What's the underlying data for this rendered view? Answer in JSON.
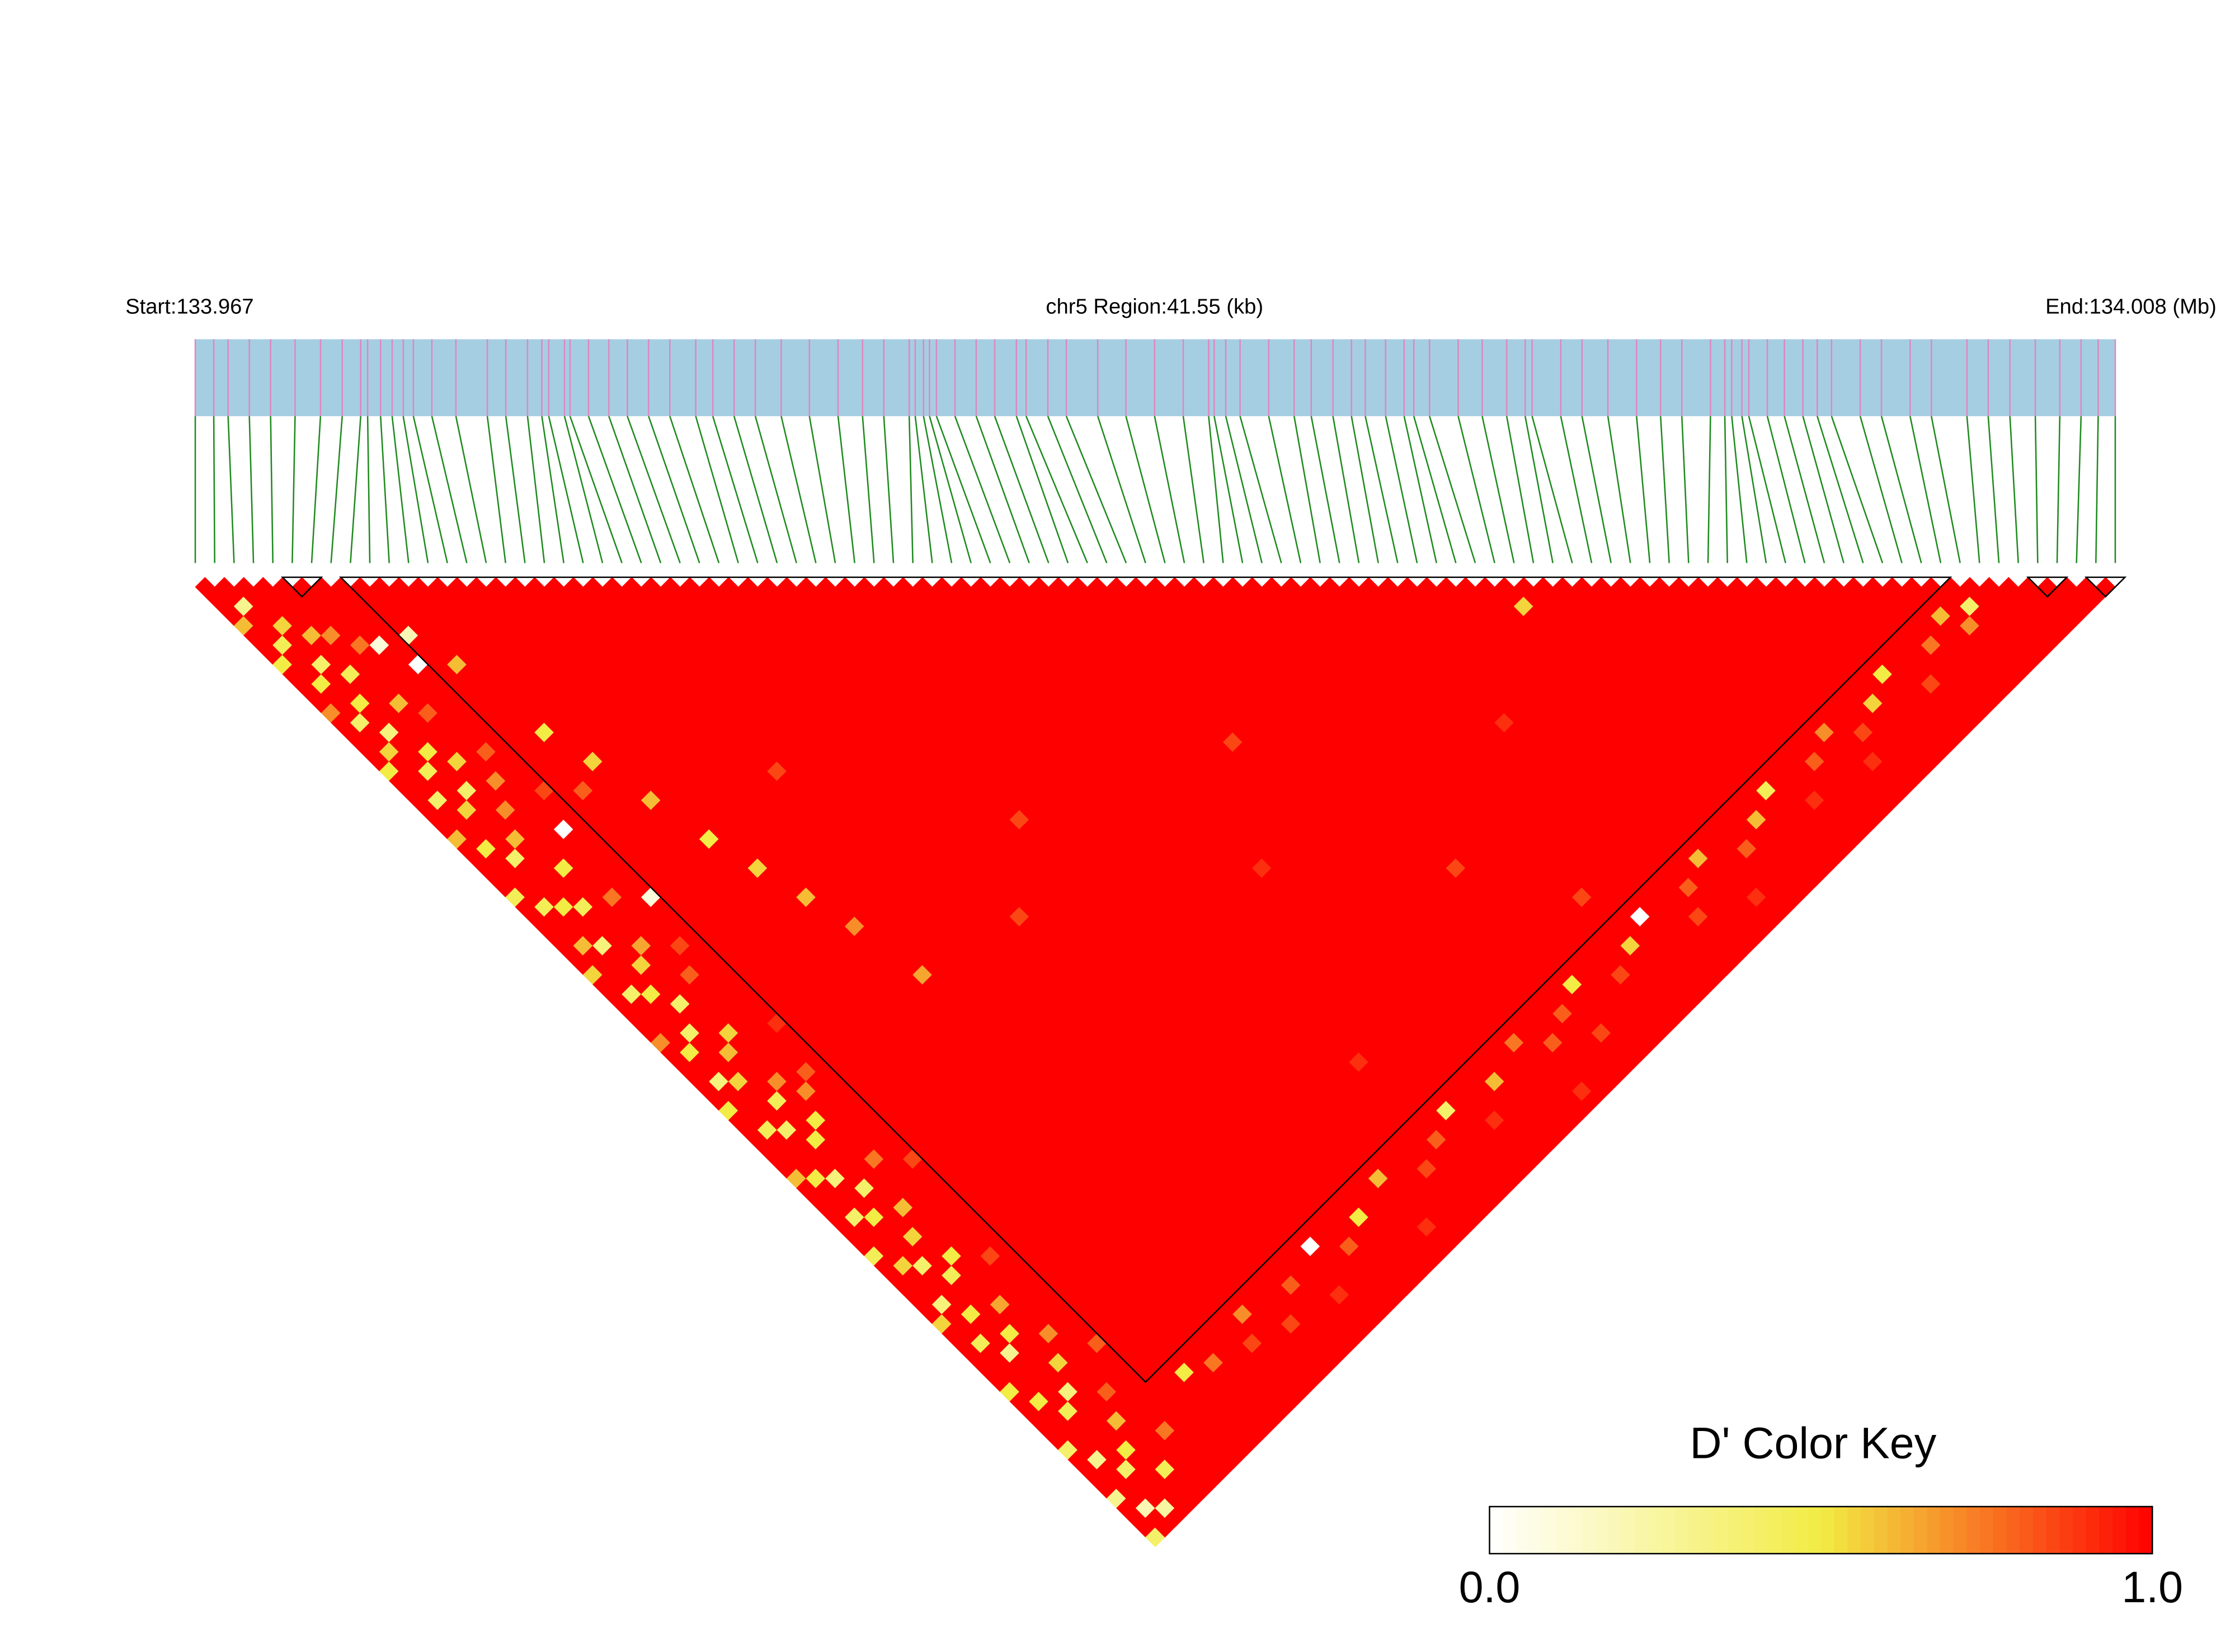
{
  "chart_data": {
    "type": "ld_heatmap",
    "start_label": "Start:133.967",
    "region_label": "chr5 Region:41.55 (kb)",
    "end_label": "End:134.008 (Mb)",
    "xlim": [
      0,
      41.55
    ],
    "snp_positions": [
      0,
      0.4,
      0.71,
      1.17,
      1.63,
      2.16,
      2.71,
      3.18,
      3.58,
      3.73,
      4.01,
      4.26,
      4.5,
      4.72,
      5.12,
      5.64,
      6.32,
      6.72,
      7.19,
      7.5,
      7.65,
      7.99,
      8.11,
      8.51,
      8.95,
      9.35,
      9.81,
      10.27,
      10.83,
      11.2,
      11.66,
      12.12,
      12.68,
      13.29,
      13.91,
      14.44,
      14.9,
      15.45,
      15.58,
      15.76,
      15.89,
      16.04,
      16.44,
      16.9,
      17.3,
      17.77,
      17.98,
      18.45,
      18.85,
      19.53,
      20.14,
      20.76,
      21.38,
      21.93,
      22.05,
      22.3,
      22.61,
      23.23,
      23.78,
      24.15,
      24.62,
      25.02,
      25.32,
      25.76,
      26.16,
      26.37,
      26.71,
      27.33,
      27.85,
      28.38,
      28.78,
      28.93,
      29.55,
      30.01,
      30.57,
      31.19,
      31.71,
      32.17,
      32.79,
      33.1,
      33.25,
      33.47,
      33.62,
      34.02,
      34.39,
      34.79,
      35.1,
      35.41,
      36.03,
      36.49,
      37.11,
      37.57,
      38.34,
      38.8,
      39.27,
      39.82,
      40.35,
      40.81,
      41.18,
      41.55
    ],
    "bar_color": "#a6cee3",
    "snp_line_color": "#dd88c0",
    "connector_color": "#1f8a1f",
    "ld": {
      "default": 1,
      "cells": [
        [
          0,
          5,
          0.6
        ],
        [
          0,
          9,
          0.5
        ],
        [
          0,
          14,
          0.7
        ],
        [
          0,
          20,
          0.5
        ],
        [
          0,
          27,
          0.6
        ],
        [
          0,
          33,
          0.45
        ],
        [
          0,
          41,
          0.55
        ],
        [
          0,
          48,
          0.7
        ],
        [
          0,
          55,
          0.5
        ],
        [
          0,
          62,
          0.6
        ],
        [
          0,
          70,
          0.45
        ],
        [
          0,
          77,
          0.55
        ],
        [
          0,
          84,
          0.5
        ],
        [
          0,
          90,
          0.4
        ],
        [
          0,
          95,
          0.3
        ],
        [
          0,
          99,
          0.4
        ],
        [
          1,
          4,
          0.3
        ],
        [
          1,
          8,
          0.45
        ],
        [
          1,
          12,
          0.5
        ],
        [
          1,
          16,
          0.4
        ],
        [
          1,
          19,
          0.55
        ],
        [
          1,
          24,
          0.4
        ],
        [
          1,
          29,
          0.5
        ],
        [
          1,
          35,
          0.45
        ],
        [
          1,
          39,
          0.6
        ],
        [
          1,
          44,
          0.4
        ],
        [
          1,
          50,
          0.5
        ],
        [
          1,
          53,
          0.35
        ],
        [
          1,
          58,
          0.45
        ],
        [
          1,
          63,
          0.5
        ],
        [
          1,
          67,
          0.4
        ],
        [
          1,
          72,
          0.55
        ],
        [
          1,
          76,
          0.35
        ],
        [
          1,
          80,
          0.45
        ],
        [
          1,
          86,
          0.5
        ],
        [
          1,
          92,
          0.3
        ],
        [
          1,
          97,
          0.2
        ],
        [
          2,
          7,
          0.55
        ],
        [
          2,
          11,
          0.4
        ],
        [
          2,
          15,
          0.5
        ],
        [
          2,
          18,
          0.35
        ],
        [
          2,
          22,
          0.45
        ],
        [
          2,
          26,
          0.55
        ],
        [
          2,
          31,
          0.4
        ],
        [
          2,
          36,
          0.5
        ],
        [
          2,
          40,
          0.35
        ],
        [
          2,
          45,
          0.5
        ],
        [
          2,
          49,
          0.4
        ],
        [
          2,
          54,
          0.55
        ],
        [
          2,
          59,
          0.4
        ],
        [
          2,
          64,
          0.35
        ],
        [
          2,
          68,
          0.5
        ],
        [
          2,
          73,
          0.4
        ],
        [
          2,
          78,
          0.5
        ],
        [
          2,
          82,
          0.3
        ],
        [
          2,
          88,
          0.45
        ],
        [
          2,
          94,
          0.4
        ],
        [
          2,
          98,
          0.25
        ],
        [
          3,
          9,
          0.6
        ],
        [
          3,
          13,
          0.45
        ],
        [
          3,
          21,
          0.5
        ],
        [
          3,
          25,
          0.4
        ],
        [
          3,
          30,
          0.6
        ],
        [
          3,
          37,
          0.45
        ],
        [
          3,
          43,
          0.55
        ],
        [
          3,
          47,
          0.4
        ],
        [
          3,
          52,
          0.6
        ],
        [
          3,
          57,
          0.45
        ],
        [
          3,
          61,
          0.5
        ],
        [
          3,
          66,
          0.4
        ],
        [
          3,
          71,
          0.55
        ],
        [
          3,
          75,
          0.45
        ],
        [
          3,
          81,
          0.5
        ],
        [
          3,
          87,
          0.35
        ],
        [
          3,
          93,
          0.5
        ],
        [
          4,
          10,
          0.7
        ],
        [
          4,
          17,
          0.6
        ],
        [
          4,
          23,
          0.55
        ],
        [
          4,
          28,
          0.7
        ],
        [
          4,
          34,
          0.5
        ],
        [
          4,
          42,
          0.65
        ],
        [
          4,
          51,
          0.55
        ],
        [
          4,
          56,
          0.7
        ],
        [
          4,
          60,
          0.5
        ],
        [
          4,
          69,
          0.6
        ],
        [
          4,
          74,
          0.5
        ],
        [
          4,
          79,
          0.65
        ],
        [
          4,
          85,
          0.55
        ],
        [
          4,
          91,
          0.6
        ],
        [
          4,
          96,
          0.45
        ],
        [
          5,
          12,
          0.75
        ],
        [
          5,
          19,
          0.8
        ],
        [
          5,
          26,
          0.7
        ],
        [
          5,
          38,
          0.75
        ],
        [
          5,
          46,
          0.8
        ],
        [
          5,
          58,
          0.7
        ],
        [
          5,
          65,
          0.75
        ],
        [
          5,
          83,
          0.7
        ],
        [
          5,
          89,
          0.8
        ],
        [
          6,
          13,
          0.1
        ],
        [
          6,
          24,
          0.8
        ],
        [
          6,
          32,
          0
        ],
        [
          6,
          44,
          0.85
        ],
        [
          6,
          57,
          0.8
        ],
        [
          6,
          76,
          0.85
        ],
        [
          6,
          94,
          0.75
        ],
        [
          7,
          16,
          0
        ],
        [
          7,
          29,
          0.85
        ],
        [
          7,
          40,
          0.1
        ],
        [
          7,
          53,
          0.9
        ],
        [
          7,
          67,
          0.85
        ],
        [
          7,
          86,
          0.8
        ],
        [
          10,
          92,
          0.5
        ],
        [
          16,
          92,
          0.7
        ],
        [
          23,
          92,
          0
        ],
        [
          30,
          92,
          0.6
        ],
        [
          37,
          92,
          0.4
        ],
        [
          44,
          92,
          0.75
        ],
        [
          50,
          92,
          0.5
        ],
        [
          57,
          92,
          0
        ],
        [
          63,
          92,
          0.6
        ],
        [
          70,
          92,
          0.45
        ],
        [
          76,
          92,
          0.7
        ],
        [
          82,
          92,
          0.5
        ],
        [
          88,
          92,
          0.6
        ],
        [
          12,
          93,
          0.75
        ],
        [
          20,
          93,
          0.8
        ],
        [
          27,
          93,
          0.5
        ],
        [
          35,
          93,
          0.8
        ],
        [
          41,
          93,
          0.6
        ],
        [
          48,
          93,
          0.8
        ],
        [
          55,
          93,
          0.55
        ],
        [
          61,
          93,
          0.8
        ],
        [
          68,
          93,
          0.6
        ],
        [
          74,
          93,
          0.8
        ],
        [
          80,
          93,
          0.55
        ],
        [
          86,
          93,
          0.75
        ],
        [
          90,
          93,
          0.4
        ],
        [
          15,
          94,
          0.85
        ],
        [
          25,
          94,
          0.8
        ],
        [
          33,
          94,
          0.85
        ],
        [
          46,
          94,
          0.8
        ],
        [
          53,
          94,
          0.85
        ],
        [
          66,
          94,
          0.8
        ],
        [
          78,
          94,
          0.85
        ],
        [
          89,
          94,
          0.7
        ],
        [
          18,
          95,
          0.85
        ],
        [
          39,
          95,
          0.9
        ],
        [
          60,
          95,
          0.85
        ],
        [
          72,
          95,
          0.9
        ],
        [
          84,
          95,
          0.85
        ],
        [
          22,
          96,
          0.9
        ],
        [
          49,
          96,
          0.85
        ],
        [
          77,
          96,
          0.9
        ],
        [
          30,
          97,
          0.9
        ],
        [
          64,
          97,
          0.9
        ],
        [
          45,
          98,
          0.9
        ],
        [
          8,
          14,
          0.2
        ],
        [
          9,
          18,
          0.6
        ],
        [
          10,
          26,
          0.5
        ],
        [
          11,
          30,
          0.55
        ],
        [
          12,
          35,
          0.6
        ],
        [
          13,
          40,
          0.5
        ],
        [
          14,
          44,
          0.55
        ],
        [
          15,
          48,
          0.6
        ],
        [
          16,
          52,
          0.7
        ],
        [
          17,
          58,
          0.65
        ],
        [
          9,
          31,
          0.8
        ],
        [
          20,
          40,
          0.85
        ],
        [
          25,
          60,
          0.85
        ],
        [
          30,
          55,
          0.85
        ],
        [
          40,
          70,
          0.9
        ],
        [
          50,
          80,
          0.85
        ],
        [
          60,
          75,
          0.9
        ],
        [
          67,
          70,
          0.55
        ],
        [
          45,
          62,
          0.85
        ],
        [
          35,
          85,
          0.9
        ],
        [
          55,
          88,
          0.85
        ]
      ]
    },
    "blocks": [
      [
        5,
        6
      ],
      [
        8,
        90
      ],
      [
        95,
        96
      ],
      [
        98,
        99
      ]
    ],
    "color_key": {
      "title": "D' Color Key",
      "lim": [
        0,
        1
      ],
      "colors": [
        "#ffffff",
        "#f2ec44",
        "#ff0000"
      ],
      "ticks": [
        {
          "value": 0,
          "label": "0.0"
        },
        {
          "value": 1,
          "label": "1.0"
        }
      ]
    }
  }
}
